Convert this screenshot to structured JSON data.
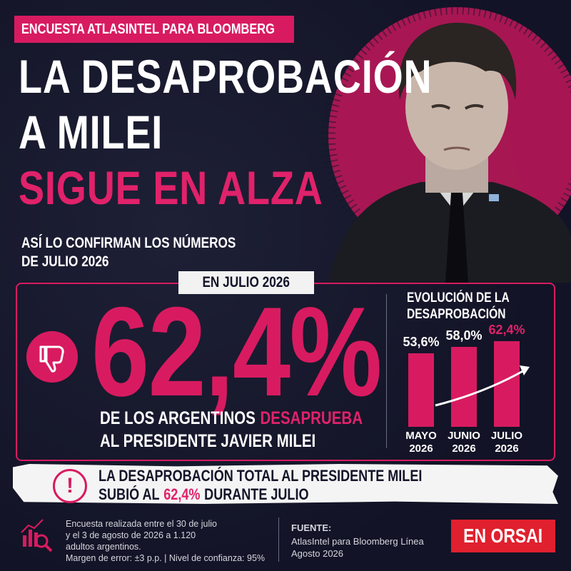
{
  "header": {
    "tag": "ENCUESTA ATLASINTEL PARA BLOOMBERG",
    "title_lines": [
      "LA DESAPROBACIÓN",
      "A MILEI",
      "SIGUE EN ALZA"
    ],
    "subtitle_lines": [
      "ASÍ LO CONFIRMAN LOS NÚMEROS",
      "DE JULIO 2026"
    ]
  },
  "panel": {
    "badge": "EN JULIO 2026",
    "big_value": "62,4%",
    "caption": [
      [
        "DE LOS ARGENTINOS",
        "DESAPRUEBA"
      ],
      [
        "AL PRESIDENTE JAVIER MILEI"
      ]
    ]
  },
  "chart_data": {
    "type": "bar",
    "title": "EVOLUCIÓN DE LA DESAPROBACIÓN",
    "categories": [
      "MAYO 2026",
      "JUNIO 2026",
      "JULIO 2026"
    ],
    "values": [
      53.6,
      58.0,
      62.4
    ],
    "value_labels": [
      "53,6%",
      "58,0%",
      "62,4%"
    ],
    "color": "#d81b60"
  },
  "banner": {
    "lines": [
      [
        "LA DESAPROBACIÓN TOTAL AL PRESIDENTE MILEI"
      ],
      [
        "SUBIÓ AL",
        "62,4%",
        "DURANTE JULIO"
      ]
    ]
  },
  "footer": {
    "method_lines": [
      "Encuesta realizada entre el 30 de julio",
      "y el 3 de agosto de 2026 a 1.120",
      "adultos argentinos.",
      "Margen de error: ±3 p.p. | Nivel de confianza: 95%"
    ],
    "source_label": "FUENTE:",
    "source_lines": [
      "AtlasIntel para Bloomberg Línea",
      "Agosto 2026"
    ],
    "brand": "EN ORSAI"
  }
}
